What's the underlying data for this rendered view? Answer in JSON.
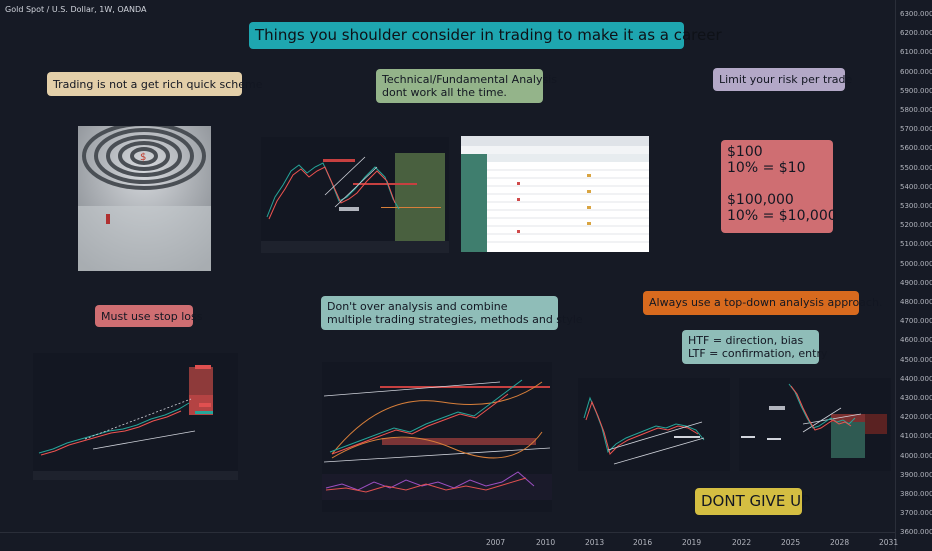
{
  "symbol_title": "Gold Spot / U.S. Dollar, 1W, OANDA",
  "colors": {
    "background": "#161a25",
    "teal": "#1ea6b0",
    "tan": "#e3cfa9",
    "green": "#94b48a",
    "lavender": "#b3a8c7",
    "red": "#cf6e72",
    "orange": "#d86a1e",
    "mint": "#8fbdb8",
    "yellow": "#d4be42"
  },
  "notes": {
    "headline": "Things you shoulder consider in trading to make it as a career",
    "get_rich": "Trading is not a get rich quick scheme",
    "analysis": "Technical/Fundamental Analysis\ndont work all the time.",
    "limit_risk": "Limit your risk per trade",
    "risk_example": "$100\n10% = $10\n\n$100,000\n10% = $10,000",
    "stop_loss": "Must use stop loss",
    "over_analysis": "Don't over analysis and combine\nmultiple trading strategies, methods and style",
    "top_down": "Always use a top-down analysis approach.",
    "htf_ltf": "HTF = direction, bias\nLTF = confirmation, entry",
    "dont_give_up": "DONT GIVE UP"
  },
  "price_axis": [
    "6300.000",
    "6200.000",
    "6100.000",
    "6000.000",
    "5900.000",
    "5800.000",
    "5700.000",
    "5600.000",
    "5500.000",
    "5400.000",
    "5300.000",
    "5200.000",
    "5100.000",
    "5000.000",
    "4900.000",
    "4800.000",
    "4700.000",
    "4600.000",
    "4500.000",
    "4400.000",
    "4300.000",
    "4200.000",
    "4100.000",
    "4000.000",
    "3900.000",
    "3800.000",
    "3700.000",
    "3600.000"
  ],
  "time_axis": [
    "2007",
    "2010",
    "2013",
    "2016",
    "2019",
    "2022",
    "2025",
    "2028",
    "2031"
  ]
}
